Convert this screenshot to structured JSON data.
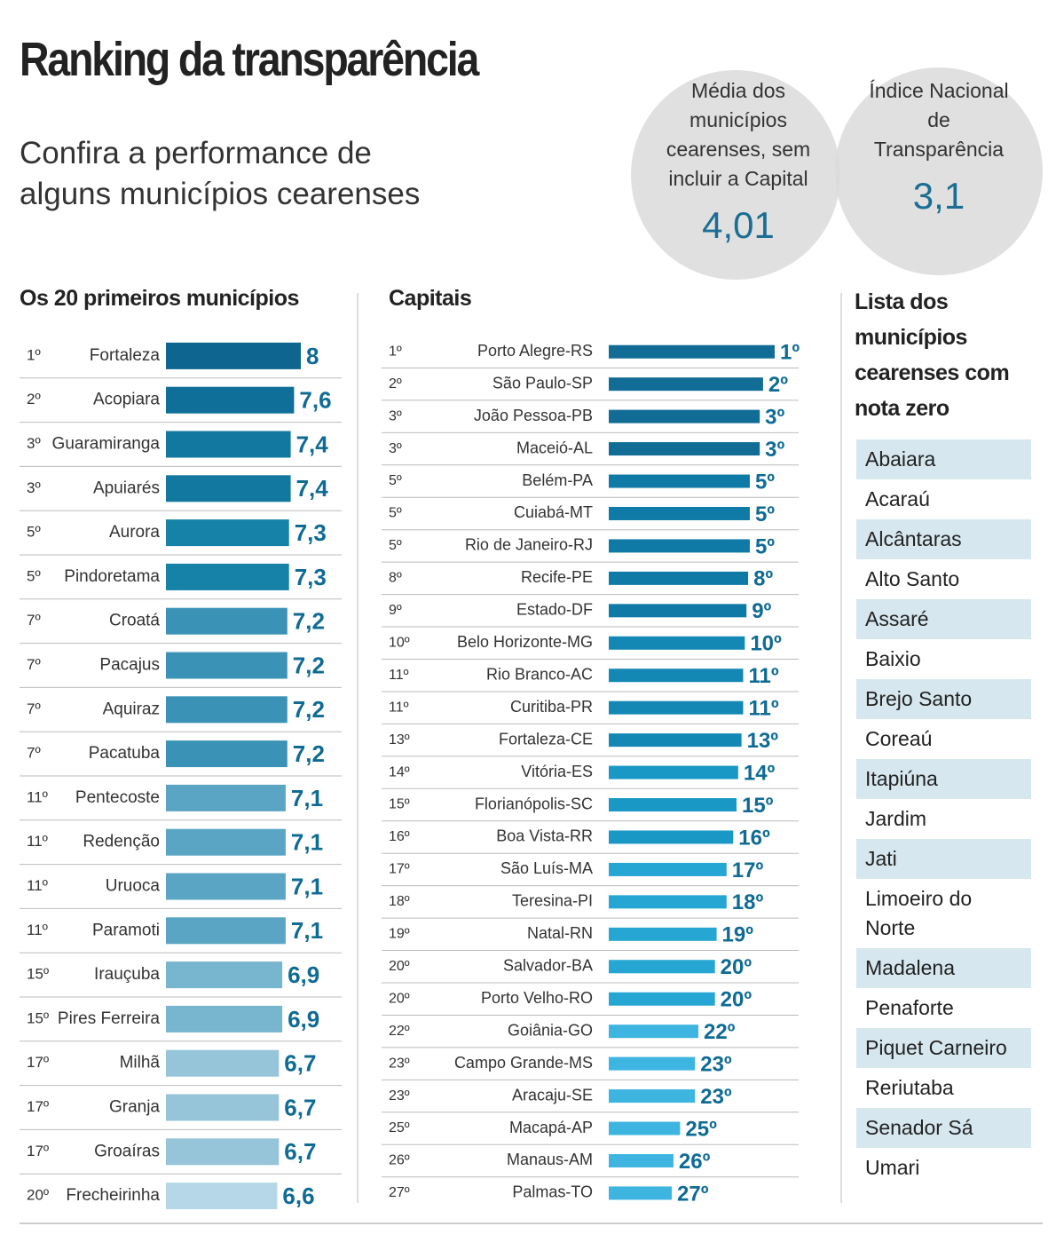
{
  "header": {
    "title": "Ranking da transparência",
    "subtitle": "Confira a performance de alguns municípios cearenses"
  },
  "stats": [
    {
      "label": "Média dos municípios cearenses, sem incluir a Capital",
      "value": "4,01"
    },
    {
      "label": "Índice Nacional de Transparência",
      "value": "3,1"
    }
  ],
  "chart_data": [
    {
      "type": "bar",
      "title": "Os 20 primeiros municípios",
      "ranks": [
        "1º",
        "2º",
        "3º",
        "3º",
        "5º",
        "5º",
        "7º",
        "7º",
        "7º",
        "7º",
        "11º",
        "11º",
        "11º",
        "11º",
        "15º",
        "15º",
        "17º",
        "17º",
        "17º",
        "20º"
      ],
      "categories": [
        "Fortaleza",
        "Acopiara",
        "Guaramiranga",
        "Apuiarés",
        "Aurora",
        "Pindoretama",
        "Croatá",
        "Pacajus",
        "Aquiraz",
        "Pacatuba",
        "Pentecoste",
        "Redenção",
        "Uruoca",
        "Paramoti",
        "Irauçuba",
        "Pires Ferreira",
        "Milhã",
        "Granja",
        "Groaíras",
        "Frecheirinha"
      ],
      "values": [
        8,
        7.6,
        7.4,
        7.4,
        7.3,
        7.3,
        7.2,
        7.2,
        7.2,
        7.2,
        7.1,
        7.1,
        7.1,
        7.1,
        6.9,
        6.9,
        6.7,
        6.7,
        6.7,
        6.6
      ],
      "value_labels": [
        "8",
        "7,6",
        "7,4",
        "7,4",
        "7,3",
        "7,3",
        "7,2",
        "7,2",
        "7,2",
        "7,2",
        "7,1",
        "7,1",
        "7,1",
        "7,1",
        "6,9",
        "6,9",
        "6,7",
        "6,7",
        "6,7",
        "6,6"
      ],
      "colors": [
        "#0e6690",
        "#0f6f98",
        "#12789f",
        "#12789f",
        "#1682a8",
        "#1682a8",
        "#3a93b6",
        "#3a93b6",
        "#3a93b6",
        "#3a93b6",
        "#5aa5c3",
        "#5aa5c3",
        "#5aa5c3",
        "#5aa5c3",
        "#78b5cf",
        "#78b5cf",
        "#96c5da",
        "#96c5da",
        "#96c5da",
        "#b5d7e7"
      ]
    },
    {
      "type": "bar",
      "title": "Capitais",
      "ranks": [
        "1º",
        "2º",
        "3º",
        "3º",
        "5º",
        "5º",
        "5º",
        "8º",
        "9º",
        "10º",
        "11º",
        "11º",
        "13º",
        "14º",
        "15º",
        "16º",
        "17º",
        "18º",
        "19º",
        "20º",
        "20º",
        "22º",
        "23º",
        "23º",
        "25º",
        "26º",
        "27º"
      ],
      "categories": [
        "Porto Alegre-RS",
        "São Paulo-SP",
        "João Pessoa-PB",
        "Maceió-AL",
        "Belém-PA",
        "Cuiabá-MT",
        "Rio de Janeiro-RJ",
        "Recife-PE",
        "Estado-DF",
        "Belo Horizonte-MG",
        "Rio Branco-AC",
        "Curitiba-PR",
        "Fortaleza-CE",
        "Vitória-ES",
        "Florianópolis-SC",
        "Boa Vista-RR",
        "São Luís-MA",
        "Teresina-PI",
        "Natal-RN",
        "Salvador-BA",
        "Porto Velho-RO",
        "Goiânia-GO",
        "Campo Grande-MS",
        "Aracaju-SE",
        "Macapá-AP",
        "Manaus-AM",
        "Palmas-TO"
      ],
      "values": [
        10,
        9.3,
        9.1,
        9.1,
        8.5,
        8.5,
        8.5,
        8.4,
        8.3,
        8.2,
        8.1,
        8.1,
        8,
        7.8,
        7.7,
        7.5,
        7.1,
        7.1,
        6.5,
        6.4,
        6.4,
        5.4,
        5.2,
        5.2,
        4.3,
        3.9,
        3.8
      ],
      "colors": [
        "#116c96",
        "#116c96",
        "#116c96",
        "#116c96",
        "#0f7aa6",
        "#0f7aa6",
        "#0f7aa6",
        "#0f7aa6",
        "#0f7aa6",
        "#1488b5",
        "#1488b5",
        "#1488b5",
        "#1488b5",
        "#1a98c5",
        "#1a98c5",
        "#1a98c5",
        "#25a6d3",
        "#25a6d3",
        "#25a6d3",
        "#25a6d3",
        "#25a6d3",
        "#3db5e0",
        "#3db5e0",
        "#3db5e0",
        "#3db5e0",
        "#3db5e0",
        "#3db5e0"
      ]
    }
  ],
  "zero_list": {
    "title": "Lista dos municípios cearenses com nota zero",
    "items": [
      "Abaiara",
      "Acaraú",
      "Alcântaras",
      "Alto Santo",
      "Assaré",
      "Baixio",
      "Brejo Santo",
      "Coreaú",
      "Itapiúna",
      "Jardim",
      "Jati",
      "Limoeiro do Norte",
      "Madalena",
      "Penaforte",
      "Piquet Carneiro",
      "Reriutaba",
      "Senador Sá",
      "Umari"
    ]
  }
}
